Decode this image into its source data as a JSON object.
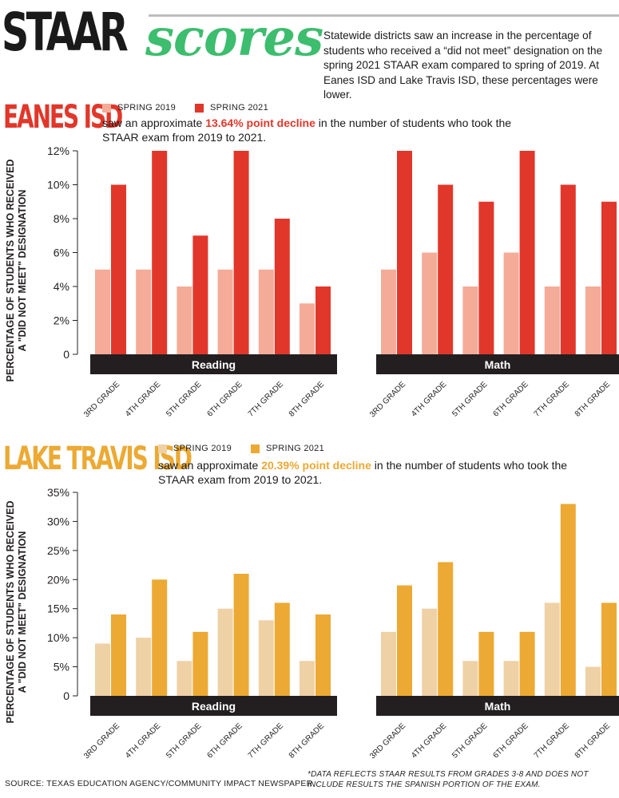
{
  "header": {
    "title_main": "STAAR",
    "title_script": "scores",
    "intro": "Statewide districts saw an increase in the percentage of students who received a “did not meet” designation on the spring 2021 STAAR exam compared to spring of 2019. At Eanes ISD and Lake Travis ISD, these percentages were lower."
  },
  "eanes": {
    "name": "EANES ISD",
    "legend_2019": "SPRING 2019",
    "legend_2021": "SPRING 2021",
    "note_pre": "saw an approximate ",
    "note_highlight": "13.64% point decline",
    "note_post": " in the number of students who took the STAAR exam from 2019 to 2021."
  },
  "lake_travis": {
    "name": "LAKE TRAVIS ISD",
    "legend_2019": "SPRING 2019",
    "legend_2021": "SPRING 2021",
    "note_pre": "saw an approximate ",
    "note_highlight": "20.39% point decline",
    "note_post": " in the number of students who took the STAAR exam from 2019 to 2021."
  },
  "colors": {
    "eanes_2019": "#f4ab97",
    "eanes_2021": "#e1372a",
    "lt_2019": "#efd1a6",
    "lt_2021": "#eca933",
    "panel_bar": "#231f20",
    "axis": "#231f20"
  },
  "chart_data": [
    {
      "type": "bar",
      "district": "EANES ISD",
      "ylabel": "PERCENTAGE OF STUDENTS WHO RECEIVED A \"DID NOT MEET\" DESIGNATION",
      "ylim": [
        0,
        12
      ],
      "yticks": [
        0,
        2,
        4,
        6,
        8,
        10,
        12
      ],
      "ytick_labels": [
        "0",
        "2%",
        "4%",
        "6%",
        "8%",
        "10%",
        "12%"
      ],
      "categories": [
        "3RD GRADE",
        "4TH GRADE",
        "5TH GRADE",
        "6TH GRADE",
        "7TH GRADE",
        "8TH GRADE"
      ],
      "legend": "top",
      "grid": false,
      "panels": [
        {
          "name": "Reading",
          "series": [
            {
              "name": "SPRING 2019",
              "values": [
                5,
                5,
                4,
                5,
                5,
                3
              ]
            },
            {
              "name": "SPRING 2021",
              "values": [
                10,
                12,
                7,
                12,
                8,
                4
              ]
            }
          ]
        },
        {
          "name": "Math",
          "series": [
            {
              "name": "SPRING 2019",
              "values": [
                5,
                6,
                4,
                6,
                4,
                4
              ]
            },
            {
              "name": "SPRING 2021",
              "values": [
                12,
                10,
                9,
                12,
                10,
                9
              ]
            }
          ]
        }
      ]
    },
    {
      "type": "bar",
      "district": "LAKE TRAVIS ISD",
      "ylabel": "PERCENTAGE OF STUDENTS WHO RECEIVED A \"DID NOT MEET\" DESIGNATION",
      "ylim": [
        0,
        35
      ],
      "yticks": [
        0,
        5,
        10,
        15,
        20,
        25,
        30,
        35
      ],
      "ytick_labels": [
        "0",
        "5%",
        "10%",
        "15%",
        "20%",
        "25%",
        "30%",
        "35%"
      ],
      "categories": [
        "3RD GRADE",
        "4TH GRADE",
        "5TH GRADE",
        "6TH GRADE",
        "7TH GRADE",
        "8TH GRADE"
      ],
      "legend": "top",
      "grid": false,
      "panels": [
        {
          "name": "Reading",
          "series": [
            {
              "name": "SPRING 2019",
              "values": [
                9,
                10,
                6,
                15,
                13,
                6
              ]
            },
            {
              "name": "SPRING 2021",
              "values": [
                14,
                20,
                11,
                21,
                16,
                14
              ]
            }
          ]
        },
        {
          "name": "Math",
          "series": [
            {
              "name": "SPRING 2019",
              "values": [
                11,
                15,
                6,
                6,
                16,
                5
              ]
            },
            {
              "name": "SPRING 2021",
              "values": [
                19,
                23,
                11,
                11,
                33,
                16
              ]
            }
          ]
        }
      ]
    }
  ],
  "footer": {
    "source": "SOURCE: TEXAS EDUCATION AGENCY/COMMUNITY IMPACT NEWSPAPER",
    "footnote": "*DATA REFLECTS STAAR RESULTS FROM GRADES 3-8 AND DOES NOT INCLUDE RESULTS THE SPANISH PORTION OF THE EXAM."
  }
}
